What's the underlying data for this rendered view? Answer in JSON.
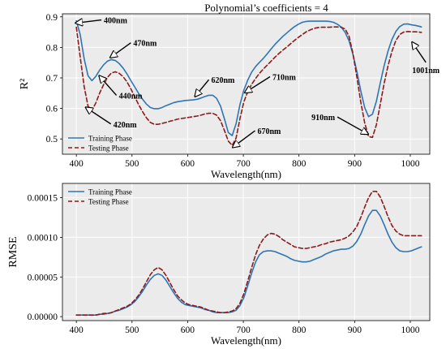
{
  "chart_data": [
    {
      "type": "line",
      "title": "Polynomial’s coefficients = 4",
      "xlabel": "Wavelength(nm)",
      "ylabel": "R²",
      "xlim": [
        375,
        1035
      ],
      "ylim": [
        0.45,
        0.91
      ],
      "xticks": [
        400,
        500,
        600,
        700,
        800,
        900,
        1000
      ],
      "yticks": [
        0.5,
        0.6,
        0.7,
        0.8,
        0.9
      ],
      "grid": true,
      "legend_position": "lower-left",
      "series": [
        {
          "name": "Training Phase",
          "color": "#2e75b6",
          "dash": "solid",
          "x": [
            400,
            407,
            414,
            421,
            428,
            435,
            442,
            449,
            456,
            463,
            470,
            477,
            484,
            491,
            498,
            505,
            512,
            519,
            526,
            533,
            540,
            547,
            554,
            561,
            568,
            575,
            582,
            589,
            596,
            603,
            610,
            617,
            624,
            631,
            638,
            645,
            652,
            659,
            666,
            673,
            680,
            687,
            694,
            701,
            708,
            715,
            722,
            729,
            736,
            743,
            750,
            757,
            764,
            771,
            778,
            785,
            792,
            799,
            806,
            813,
            820,
            827,
            834,
            841,
            848,
            855,
            862,
            869,
            876,
            883,
            890,
            897,
            904,
            911,
            918,
            925,
            932,
            939,
            946,
            953,
            960,
            967,
            974,
            981,
            988,
            995,
            1002,
            1009,
            1016,
            1020
          ],
          "y": [
            0.887,
            0.841,
            0.763,
            0.707,
            0.691,
            0.705,
            0.726,
            0.743,
            0.755,
            0.76,
            0.757,
            0.747,
            0.732,
            0.713,
            0.691,
            0.67,
            0.649,
            0.63,
            0.614,
            0.603,
            0.599,
            0.599,
            0.603,
            0.609,
            0.614,
            0.619,
            0.622,
            0.624,
            0.626,
            0.627,
            0.628,
            0.63,
            0.634,
            0.639,
            0.643,
            0.643,
            0.633,
            0.608,
            0.566,
            0.521,
            0.511,
            0.55,
            0.613,
            0.66,
            0.693,
            0.719,
            0.737,
            0.751,
            0.764,
            0.779,
            0.795,
            0.81,
            0.823,
            0.836,
            0.847,
            0.858,
            0.868,
            0.876,
            0.882,
            0.885,
            0.886,
            0.886,
            0.886,
            0.886,
            0.886,
            0.885,
            0.882,
            0.876,
            0.866,
            0.849,
            0.821,
            0.777,
            0.721,
            0.658,
            0.603,
            0.573,
            0.581,
            0.623,
            0.683,
            0.74,
            0.788,
            0.826,
            0.852,
            0.868,
            0.876,
            0.877,
            0.874,
            0.872,
            0.869,
            0.867
          ]
        },
        {
          "name": "Testing Phase",
          "color": "#8b1a1a",
          "dash": "dashed",
          "x": [
            400,
            407,
            414,
            421,
            428,
            435,
            442,
            449,
            456,
            463,
            470,
            477,
            484,
            491,
            498,
            505,
            512,
            519,
            526,
            533,
            540,
            547,
            554,
            561,
            568,
            575,
            582,
            589,
            596,
            603,
            610,
            617,
            624,
            631,
            638,
            645,
            652,
            659,
            666,
            673,
            680,
            687,
            694,
            701,
            708,
            715,
            722,
            729,
            736,
            743,
            750,
            757,
            764,
            771,
            778,
            785,
            792,
            799,
            806,
            813,
            820,
            827,
            834,
            841,
            848,
            855,
            862,
            869,
            876,
            883,
            890,
            897,
            904,
            911,
            918,
            925,
            932,
            939,
            946,
            953,
            960,
            967,
            974,
            981,
            988,
            995,
            1002,
            1009,
            1016,
            1020
          ],
          "y": [
            0.866,
            0.767,
            0.672,
            0.607,
            0.593,
            0.618,
            0.651,
            0.678,
            0.702,
            0.716,
            0.72,
            0.715,
            0.704,
            0.687,
            0.664,
            0.638,
            0.612,
            0.589,
            0.569,
            0.554,
            0.548,
            0.548,
            0.551,
            0.554,
            0.558,
            0.561,
            0.565,
            0.567,
            0.569,
            0.571,
            0.573,
            0.575,
            0.578,
            0.582,
            0.584,
            0.584,
            0.578,
            0.56,
            0.528,
            0.493,
            0.479,
            0.503,
            0.567,
            0.622,
            0.655,
            0.679,
            0.698,
            0.715,
            0.729,
            0.742,
            0.755,
            0.768,
            0.78,
            0.791,
            0.801,
            0.812,
            0.823,
            0.833,
            0.842,
            0.851,
            0.857,
            0.862,
            0.865,
            0.866,
            0.866,
            0.866,
            0.867,
            0.867,
            0.866,
            0.86,
            0.836,
            0.779,
            0.703,
            0.621,
            0.553,
            0.508,
            0.505,
            0.546,
            0.613,
            0.682,
            0.74,
            0.787,
            0.822,
            0.842,
            0.85,
            0.852,
            0.851,
            0.851,
            0.85,
            0.849
          ]
        }
      ],
      "annotations": [
        {
          "text": "400nm",
          "x": 400,
          "y": 0.88,
          "tx": 445,
          "ty": 0.89
        },
        {
          "text": "470nm",
          "x": 462,
          "y": 0.768,
          "tx": 498,
          "ty": 0.815
        },
        {
          "text": "620nm",
          "x": 614,
          "y": 0.641,
          "tx": 638,
          "ty": 0.694
        },
        {
          "text": "710nm",
          "x": 704,
          "y": 0.653,
          "tx": 748,
          "ty": 0.704
        },
        {
          "text": "440nm",
          "x": 442,
          "y": 0.705,
          "tx": 472,
          "ty": 0.643
        },
        {
          "text": "420nm",
          "x": 418,
          "y": 0.602,
          "tx": 462,
          "ty": 0.549
        },
        {
          "text": "670nm",
          "x": 682,
          "y": 0.474,
          "tx": 721,
          "ty": 0.527
        },
        {
          "text": "910nm",
          "x": 923,
          "y": 0.517,
          "tx": 869,
          "ty": 0.572
        },
        {
          "text": "1001nm",
          "x": 1004,
          "y": 0.815,
          "tx": 1028,
          "ty": 0.751
        }
      ]
    },
    {
      "type": "line",
      "title": "",
      "xlabel": "Wavelength(nm)",
      "ylabel": "RMSE",
      "xlim": [
        375,
        1035
      ],
      "ylim": [
        -5e-06,
        0.000168
      ],
      "xticks": [
        400,
        500,
        600,
        700,
        800,
        900,
        1000
      ],
      "yticks": [
        0,
        5e-05,
        0.0001,
        0.00015
      ],
      "ytick_labels": [
        "0.00000",
        "0.00005",
        "0.00010",
        "0.00015"
      ],
      "grid": true,
      "legend_position": "top-left",
      "series": [
        {
          "name": "Training Phase",
          "color": "#2e75b6",
          "dash": "solid",
          "x": [
            400,
            407,
            414,
            421,
            428,
            435,
            442,
            449,
            456,
            463,
            470,
            477,
            484,
            491,
            498,
            505,
            512,
            519,
            526,
            533,
            540,
            547,
            554,
            561,
            568,
            575,
            582,
            589,
            596,
            603,
            610,
            617,
            624,
            631,
            638,
            645,
            652,
            659,
            666,
            673,
            680,
            687,
            694,
            701,
            708,
            715,
            722,
            729,
            736,
            743,
            750,
            757,
            764,
            771,
            778,
            785,
            792,
            799,
            806,
            813,
            820,
            827,
            834,
            841,
            848,
            855,
            862,
            869,
            876,
            883,
            890,
            897,
            904,
            911,
            918,
            925,
            932,
            939,
            946,
            953,
            960,
            967,
            974,
            981,
            988,
            995,
            1002,
            1009,
            1016,
            1020
          ],
          "y": [
            2e-06,
            2e-06,
            2e-06,
            2e-06,
            2e-06,
            2e-06,
            3e-06,
            3e-06,
            4e-06,
            5e-06,
            7e-06,
            8e-06,
            1e-05,
            1.2e-05,
            1.5e-05,
            1.9e-05,
            2.5e-05,
            3.2e-05,
            4e-05,
            4.7e-05,
            5.2e-05,
            5.4e-05,
            5.2e-05,
            4.6e-05,
            3.8e-05,
            3e-05,
            2.3e-05,
            1.8e-05,
            1.5e-05,
            1.4e-05,
            1.3e-05,
            1.2e-05,
            1.1e-05,
            9e-06,
            8e-06,
            6e-06,
            5e-06,
            5e-06,
            5e-06,
            5e-06,
            6e-06,
            8e-06,
            1.4e-05,
            2.4e-05,
            3.9e-05,
            5.5e-05,
            6.9e-05,
            7.8e-05,
            8.2e-05,
            8.3e-05,
            8.3e-05,
            8.2e-05,
            8e-05,
            7.8e-05,
            7.6e-05,
            7.3e-05,
            7.1e-05,
            7e-05,
            6.9e-05,
            6.9e-05,
            7e-05,
            7.2e-05,
            7.4e-05,
            7.6e-05,
            7.9e-05,
            8.1e-05,
            8.3e-05,
            8.4e-05,
            8.5e-05,
            8.5e-05,
            8.6e-05,
            8.9e-05,
            9.5e-05,
            0.000104,
            0.000116,
            0.000127,
            0.000134,
            0.000134,
            0.000127,
            0.000116,
            0.000104,
            9.4e-05,
            8.7e-05,
            8.3e-05,
            8.2e-05,
            8.2e-05,
            8.3e-05,
            8.5e-05,
            8.7e-05,
            8.8e-05
          ]
        },
        {
          "name": "Testing Phase",
          "color": "#8b1a1a",
          "dash": "dashed",
          "x": [
            400,
            407,
            414,
            421,
            428,
            435,
            442,
            449,
            456,
            463,
            470,
            477,
            484,
            491,
            498,
            505,
            512,
            519,
            526,
            533,
            540,
            547,
            554,
            561,
            568,
            575,
            582,
            589,
            596,
            603,
            610,
            617,
            624,
            631,
            638,
            645,
            652,
            659,
            666,
            673,
            680,
            687,
            694,
            701,
            708,
            715,
            722,
            729,
            736,
            743,
            750,
            757,
            764,
            771,
            778,
            785,
            792,
            799,
            806,
            813,
            820,
            827,
            834,
            841,
            848,
            855,
            862,
            869,
            876,
            883,
            890,
            897,
            904,
            911,
            918,
            925,
            932,
            939,
            946,
            953,
            960,
            967,
            974,
            981,
            988,
            995,
            1002,
            1009,
            1016,
            1020
          ],
          "y": [
            2e-06,
            2e-06,
            2e-06,
            2e-06,
            2e-06,
            2e-06,
            3e-06,
            4e-06,
            4e-06,
            5e-06,
            7e-06,
            9e-06,
            1.1e-05,
            1.3e-05,
            1.6e-05,
            2.1e-05,
            2.7e-05,
            3.5e-05,
            4.4e-05,
            5.3e-05,
            5.9e-05,
            6.2e-05,
            5.9e-05,
            5.2e-05,
            4.3e-05,
            3.4e-05,
            2.6e-05,
            2.1e-05,
            1.7e-05,
            1.5e-05,
            1.4e-05,
            1.3e-05,
            1.2e-05,
            1e-05,
            8e-06,
            7e-06,
            6e-06,
            5e-06,
            5e-06,
            6e-06,
            7e-06,
            1e-05,
            1.7e-05,
            2.9e-05,
            4.5e-05,
            6.2e-05,
            7.8e-05,
            9e-05,
            9.8e-05,
            0.000103,
            0.000105,
            0.000104,
            0.000101,
            9.7e-05,
            9.4e-05,
            9.1e-05,
            8.8e-05,
            8.7e-05,
            8.6e-05,
            8.6e-05,
            8.7e-05,
            8.8e-05,
            8.9e-05,
            9.1e-05,
            9.2e-05,
            9.4e-05,
            9.5e-05,
            9.6e-05,
            9.7e-05,
            9.9e-05,
            0.000102,
            0.000107,
            0.000114,
            0.000125,
            0.000138,
            0.00015,
            0.000158,
            0.000158,
            0.000151,
            0.000139,
            0.000126,
            0.000115,
            0.000108,
            0.000104,
            0.000102,
            0.000102,
            0.000102,
            0.000102,
            0.000102,
            0.000102
          ]
        }
      ]
    }
  ]
}
